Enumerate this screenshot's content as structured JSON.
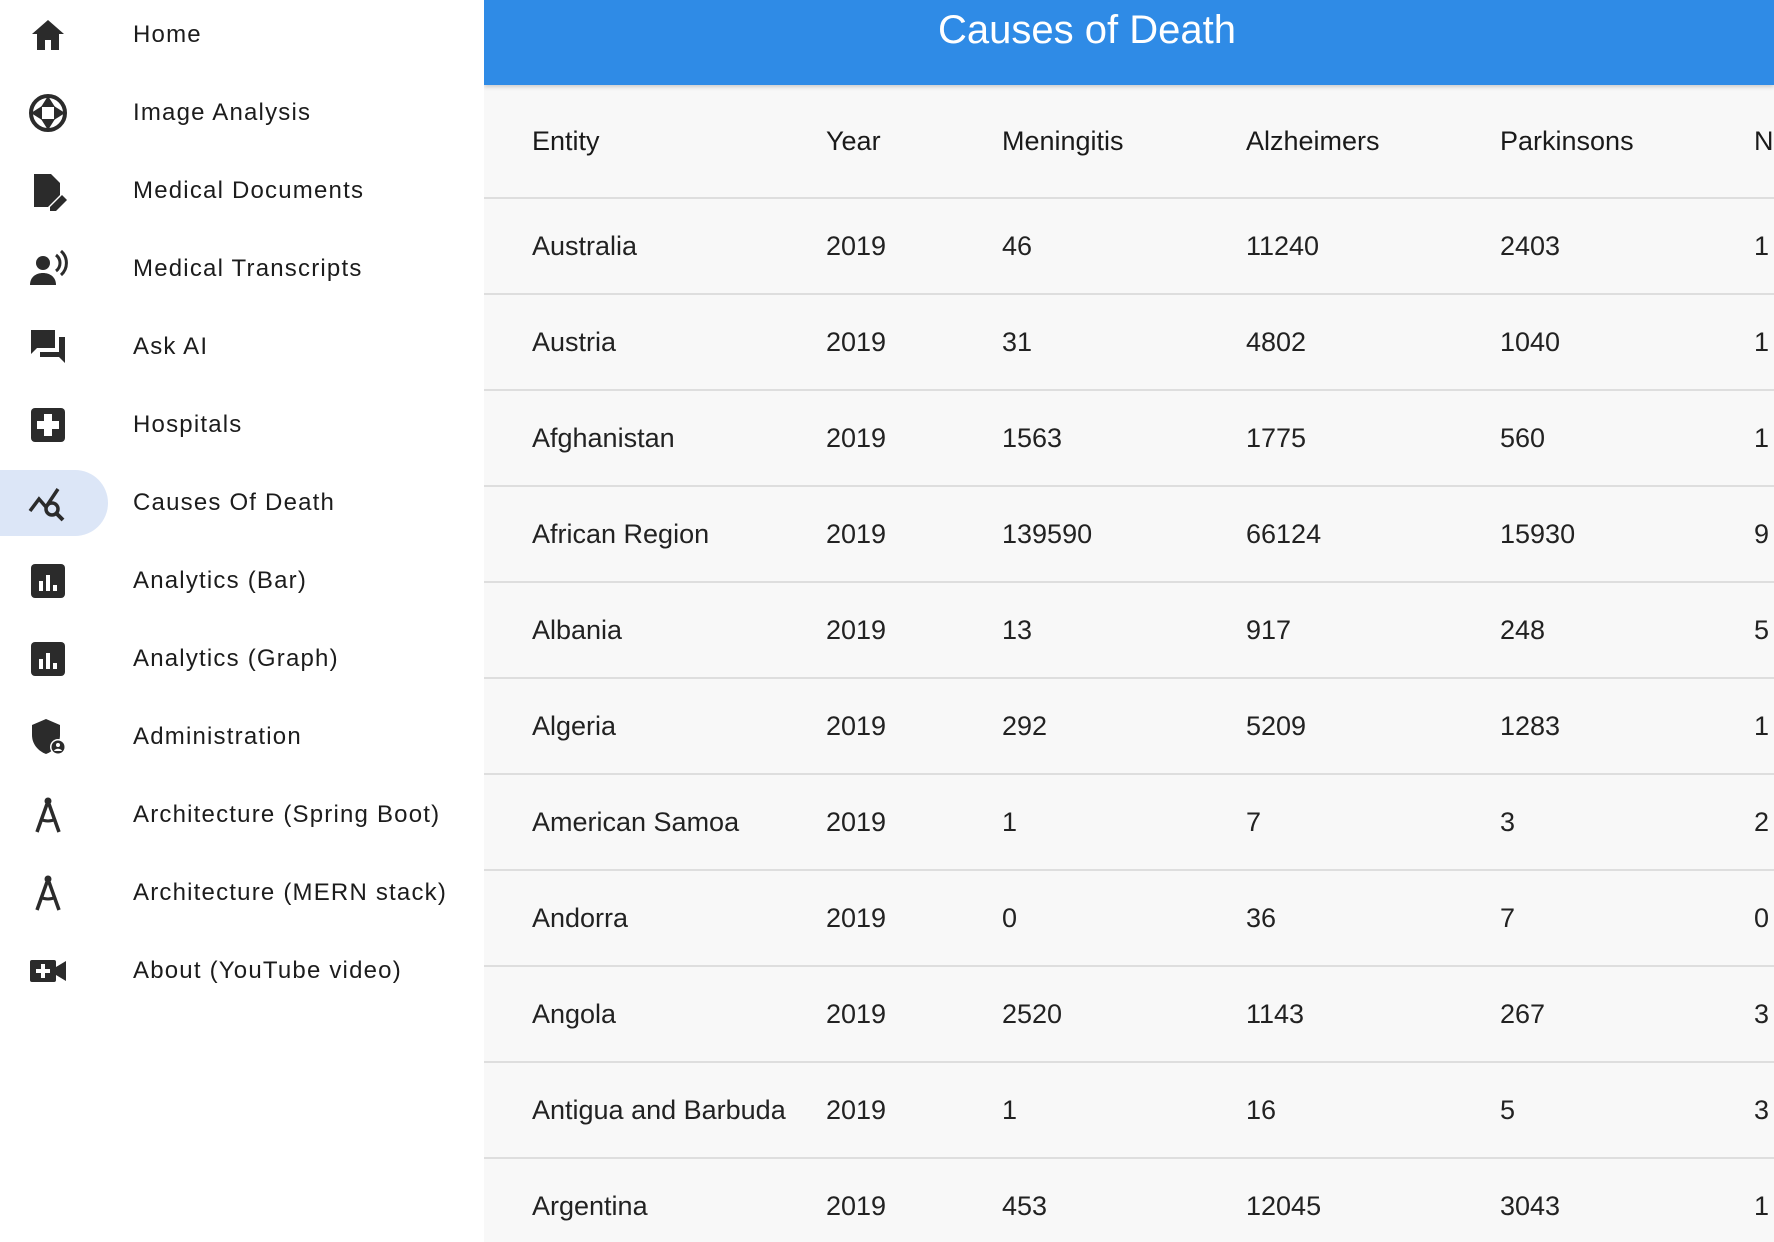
{
  "sidebar": {
    "items": [
      {
        "label": "Home",
        "icon": "home-icon",
        "active": false
      },
      {
        "label": "Image Analysis",
        "icon": "aperture-icon",
        "active": false
      },
      {
        "label": "Medical Documents",
        "icon": "edit-document-icon",
        "active": false
      },
      {
        "label": "Medical Transcripts",
        "icon": "voice-person-icon",
        "active": false
      },
      {
        "label": "Ask AI",
        "icon": "chat-bubbles-icon",
        "active": false
      },
      {
        "label": "Hospitals",
        "icon": "medical-cross-icon",
        "active": false
      },
      {
        "label": "Causes Of Death",
        "icon": "query-stats-icon",
        "active": true
      },
      {
        "label": "Analytics (Bar)",
        "icon": "bar-chart-icon",
        "active": false
      },
      {
        "label": "Analytics (Graph)",
        "icon": "bar-chart-icon",
        "active": false
      },
      {
        "label": "Administration",
        "icon": "admin-shield-icon",
        "active": false
      },
      {
        "label": "Architecture (Spring Boot)",
        "icon": "compass-icon",
        "active": false
      },
      {
        "label": "Architecture (MERN stack)",
        "icon": "compass-icon",
        "active": false
      },
      {
        "label": "About (YouTube video)",
        "icon": "video-call-icon",
        "active": false
      }
    ],
    "active_color": "#dce6f7"
  },
  "header": {
    "title": "Causes of Death",
    "color": "#2f8be6"
  },
  "table": {
    "columns": [
      "Entity",
      "Year",
      "Meningitis",
      "Alzheimers",
      "Parkinsons",
      "N"
    ],
    "rows": [
      [
        "Australia",
        "2019",
        "46",
        "11240",
        "2403",
        "1"
      ],
      [
        "Austria",
        "2019",
        "31",
        "4802",
        "1040",
        "1"
      ],
      [
        "Afghanistan",
        "2019",
        "1563",
        "1775",
        "560",
        "1"
      ],
      [
        "African Region",
        "2019",
        "139590",
        "66124",
        "15930",
        "9"
      ],
      [
        "Albania",
        "2019",
        "13",
        "917",
        "248",
        "5"
      ],
      [
        "Algeria",
        "2019",
        "292",
        "5209",
        "1283",
        "1"
      ],
      [
        "American Samoa",
        "2019",
        "1",
        "7",
        "3",
        "2"
      ],
      [
        "Andorra",
        "2019",
        "0",
        "36",
        "7",
        "0"
      ],
      [
        "Angola",
        "2019",
        "2520",
        "1143",
        "267",
        "3"
      ],
      [
        "Antigua and Barbuda",
        "2019",
        "1",
        "16",
        "5",
        "3"
      ],
      [
        "Argentina",
        "2019",
        "453",
        "12045",
        "3043",
        "1"
      ]
    ]
  }
}
